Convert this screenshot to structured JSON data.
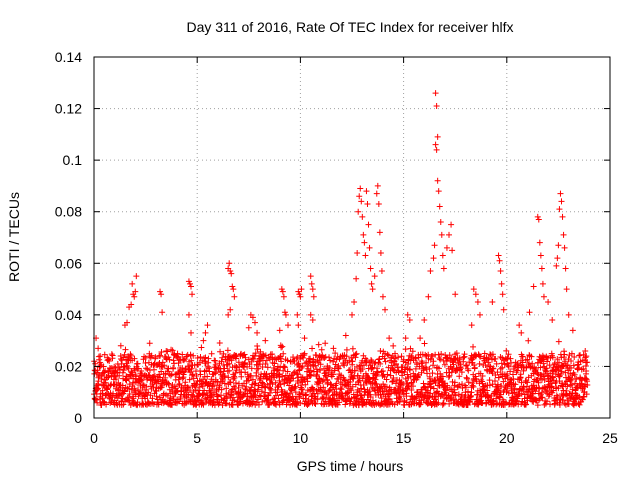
{
  "chart_data": {
    "type": "scatter",
    "title": "Day 311 of 2016, Rate Of TEC Index for receiver hlfx",
    "xlabel": "GPS time / hours",
    "ylabel": "ROTI / TECUs",
    "xlim": [
      0,
      25
    ],
    "ylim": [
      0,
      0.14
    ],
    "x_ticks": [
      0,
      5,
      10,
      15,
      20,
      25
    ],
    "x_tick_labels": [
      "0",
      "5",
      "10",
      "15",
      "20",
      "25"
    ],
    "y_ticks": [
      0,
      0.02,
      0.04,
      0.06,
      0.08,
      0.1,
      0.12,
      0.14
    ],
    "y_tick_labels": [
      "0",
      "0.02",
      "0.04",
      "0.06",
      "0.08",
      "0.1",
      "0.12",
      "0.14"
    ],
    "grid": true,
    "marker": "+",
    "series": [
      {
        "name": "ROTI",
        "color": "#ff0000",
        "baseline": {
          "x_range": [
            0,
            23.9
          ],
          "y_range": [
            0.005,
            0.025
          ]
        },
        "points": [
          {
            "x": 0.1,
            "y": 0.031
          },
          {
            "x": 0.2,
            "y": 0.027
          },
          {
            "x": 0.3,
            "y": 0.024
          },
          {
            "x": 1.3,
            "y": 0.028
          },
          {
            "x": 1.5,
            "y": 0.036
          },
          {
            "x": 1.6,
            "y": 0.037
          },
          {
            "x": 1.7,
            "y": 0.043
          },
          {
            "x": 1.8,
            "y": 0.044
          },
          {
            "x": 1.85,
            "y": 0.052
          },
          {
            "x": 1.9,
            "y": 0.048
          },
          {
            "x": 1.95,
            "y": 0.047
          },
          {
            "x": 2.0,
            "y": 0.049
          },
          {
            "x": 2.05,
            "y": 0.055
          },
          {
            "x": 2.7,
            "y": 0.029
          },
          {
            "x": 3.2,
            "y": 0.049
          },
          {
            "x": 3.25,
            "y": 0.048
          },
          {
            "x": 3.3,
            "y": 0.041
          },
          {
            "x": 3.5,
            "y": 0.026
          },
          {
            "x": 4.6,
            "y": 0.053
          },
          {
            "x": 4.65,
            "y": 0.052
          },
          {
            "x": 4.7,
            "y": 0.051
          },
          {
            "x": 4.75,
            "y": 0.048
          },
          {
            "x": 4.6,
            "y": 0.04
          },
          {
            "x": 4.7,
            "y": 0.033
          },
          {
            "x": 5.4,
            "y": 0.033
          },
          {
            "x": 5.5,
            "y": 0.036
          },
          {
            "x": 5.3,
            "y": 0.03
          },
          {
            "x": 6.5,
            "y": 0.058
          },
          {
            "x": 6.55,
            "y": 0.06
          },
          {
            "x": 6.6,
            "y": 0.057
          },
          {
            "x": 6.65,
            "y": 0.056
          },
          {
            "x": 6.7,
            "y": 0.051
          },
          {
            "x": 6.75,
            "y": 0.05
          },
          {
            "x": 6.8,
            "y": 0.047
          },
          {
            "x": 6.5,
            "y": 0.04
          },
          {
            "x": 6.6,
            "y": 0.042
          },
          {
            "x": 7.6,
            "y": 0.04
          },
          {
            "x": 7.7,
            "y": 0.039
          },
          {
            "x": 7.8,
            "y": 0.037
          },
          {
            "x": 7.5,
            "y": 0.035
          },
          {
            "x": 7.9,
            "y": 0.033
          },
          {
            "x": 8.3,
            "y": 0.03
          },
          {
            "x": 9.0,
            "y": 0.034
          },
          {
            "x": 9.1,
            "y": 0.05
          },
          {
            "x": 9.15,
            "y": 0.049
          },
          {
            "x": 9.2,
            "y": 0.047
          },
          {
            "x": 9.25,
            "y": 0.041
          },
          {
            "x": 9.3,
            "y": 0.04
          },
          {
            "x": 9.4,
            "y": 0.036
          },
          {
            "x": 9.9,
            "y": 0.049
          },
          {
            "x": 9.95,
            "y": 0.048
          },
          {
            "x": 10.0,
            "y": 0.047
          },
          {
            "x": 10.05,
            "y": 0.05
          },
          {
            "x": 9.85,
            "y": 0.04
          },
          {
            "x": 9.9,
            "y": 0.036
          },
          {
            "x": 10.5,
            "y": 0.055
          },
          {
            "x": 10.55,
            "y": 0.052
          },
          {
            "x": 10.6,
            "y": 0.05
          },
          {
            "x": 10.65,
            "y": 0.047
          },
          {
            "x": 10.5,
            "y": 0.04
          },
          {
            "x": 10.6,
            "y": 0.038
          },
          {
            "x": 10.2,
            "y": 0.031
          },
          {
            "x": 11.2,
            "y": 0.029
          },
          {
            "x": 11.6,
            "y": 0.027
          },
          {
            "x": 12.2,
            "y": 0.032
          },
          {
            "x": 12.5,
            "y": 0.04
          },
          {
            "x": 12.6,
            "y": 0.045
          },
          {
            "x": 12.7,
            "y": 0.054
          },
          {
            "x": 12.75,
            "y": 0.064
          },
          {
            "x": 12.8,
            "y": 0.08
          },
          {
            "x": 12.85,
            "y": 0.086
          },
          {
            "x": 12.9,
            "y": 0.089
          },
          {
            "x": 12.95,
            "y": 0.084
          },
          {
            "x": 13.0,
            "y": 0.078
          },
          {
            "x": 13.05,
            "y": 0.071
          },
          {
            "x": 13.1,
            "y": 0.068
          },
          {
            "x": 13.15,
            "y": 0.063
          },
          {
            "x": 13.2,
            "y": 0.088
          },
          {
            "x": 13.25,
            "y": 0.083
          },
          {
            "x": 13.3,
            "y": 0.075
          },
          {
            "x": 13.35,
            "y": 0.066
          },
          {
            "x": 13.4,
            "y": 0.058
          },
          {
            "x": 13.45,
            "y": 0.052
          },
          {
            "x": 13.5,
            "y": 0.05
          },
          {
            "x": 13.6,
            "y": 0.055
          },
          {
            "x": 13.7,
            "y": 0.087
          },
          {
            "x": 13.75,
            "y": 0.09
          },
          {
            "x": 13.8,
            "y": 0.083
          },
          {
            "x": 13.85,
            "y": 0.072
          },
          {
            "x": 13.9,
            "y": 0.064
          },
          {
            "x": 13.95,
            "y": 0.057
          },
          {
            "x": 14.0,
            "y": 0.047
          },
          {
            "x": 14.1,
            "y": 0.042
          },
          {
            "x": 14.3,
            "y": 0.031
          },
          {
            "x": 15.1,
            "y": 0.031
          },
          {
            "x": 15.2,
            "y": 0.04
          },
          {
            "x": 15.3,
            "y": 0.038
          },
          {
            "x": 15.8,
            "y": 0.031
          },
          {
            "x": 16.0,
            "y": 0.038
          },
          {
            "x": 16.2,
            "y": 0.047
          },
          {
            "x": 16.3,
            "y": 0.057
          },
          {
            "x": 16.45,
            "y": 0.062
          },
          {
            "x": 16.5,
            "y": 0.067
          },
          {
            "x": 16.55,
            "y": 0.126
          },
          {
            "x": 16.6,
            "y": 0.121
          },
          {
            "x": 16.65,
            "y": 0.109
          },
          {
            "x": 16.55,
            "y": 0.106
          },
          {
            "x": 16.6,
            "y": 0.104
          },
          {
            "x": 16.65,
            "y": 0.092
          },
          {
            "x": 16.7,
            "y": 0.088
          },
          {
            "x": 16.75,
            "y": 0.082
          },
          {
            "x": 16.8,
            "y": 0.076
          },
          {
            "x": 16.85,
            "y": 0.071
          },
          {
            "x": 16.9,
            "y": 0.063
          },
          {
            "x": 16.95,
            "y": 0.058
          },
          {
            "x": 17.1,
            "y": 0.066
          },
          {
            "x": 17.2,
            "y": 0.071
          },
          {
            "x": 17.3,
            "y": 0.075
          },
          {
            "x": 17.35,
            "y": 0.065
          },
          {
            "x": 17.5,
            "y": 0.048
          },
          {
            "x": 18.4,
            "y": 0.05
          },
          {
            "x": 18.5,
            "y": 0.048
          },
          {
            "x": 18.6,
            "y": 0.045
          },
          {
            "x": 18.7,
            "y": 0.04
          },
          {
            "x": 18.3,
            "y": 0.036
          },
          {
            "x": 19.3,
            "y": 0.045
          },
          {
            "x": 19.6,
            "y": 0.063
          },
          {
            "x": 19.65,
            "y": 0.061
          },
          {
            "x": 19.7,
            "y": 0.057
          },
          {
            "x": 19.75,
            "y": 0.052
          },
          {
            "x": 19.8,
            "y": 0.048
          },
          {
            "x": 19.85,
            "y": 0.042
          },
          {
            "x": 20.6,
            "y": 0.036
          },
          {
            "x": 20.7,
            "y": 0.033
          },
          {
            "x": 21.1,
            "y": 0.041
          },
          {
            "x": 21.3,
            "y": 0.051
          },
          {
            "x": 21.5,
            "y": 0.078
          },
          {
            "x": 21.55,
            "y": 0.077
          },
          {
            "x": 21.6,
            "y": 0.068
          },
          {
            "x": 21.65,
            "y": 0.063
          },
          {
            "x": 21.7,
            "y": 0.058
          },
          {
            "x": 21.75,
            "y": 0.052
          },
          {
            "x": 21.8,
            "y": 0.047
          },
          {
            "x": 22.0,
            "y": 0.045
          },
          {
            "x": 22.2,
            "y": 0.038
          },
          {
            "x": 22.4,
            "y": 0.059
          },
          {
            "x": 22.45,
            "y": 0.062
          },
          {
            "x": 22.5,
            "y": 0.067
          },
          {
            "x": 22.55,
            "y": 0.081
          },
          {
            "x": 22.6,
            "y": 0.087
          },
          {
            "x": 22.65,
            "y": 0.084
          },
          {
            "x": 22.7,
            "y": 0.078
          },
          {
            "x": 22.75,
            "y": 0.071
          },
          {
            "x": 22.8,
            "y": 0.066
          },
          {
            "x": 22.85,
            "y": 0.058
          },
          {
            "x": 22.9,
            "y": 0.05
          },
          {
            "x": 23.0,
            "y": 0.04
          },
          {
            "x": 23.2,
            "y": 0.034
          },
          {
            "x": 23.8,
            "y": 0.026
          },
          {
            "x": 23.85,
            "y": 0.024
          }
        ]
      }
    ]
  }
}
